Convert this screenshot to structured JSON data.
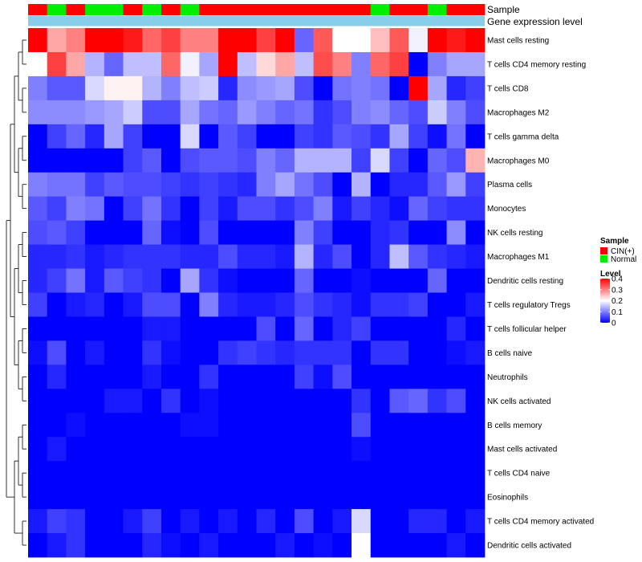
{
  "chart_data": {
    "type": "heatmap",
    "annotation_tracks": [
      {
        "name": "Sample"
      },
      {
        "name": "Gene expression level"
      }
    ],
    "samples": [
      "CIN(+)",
      "Normal",
      "CIN(+)",
      "Normal",
      "Normal",
      "CIN(+)",
      "Normal",
      "CIN(+)",
      "Normal",
      "CIN(+)",
      "CIN(+)",
      "CIN(+)",
      "CIN(+)",
      "CIN(+)",
      "CIN(+)",
      "CIN(+)",
      "CIN(+)",
      "CIN(+)",
      "Normal",
      "CIN(+)",
      "CIN(+)",
      "Normal",
      "CIN(+)",
      "CIN(+)"
    ],
    "rows": [
      "Mast cells resting",
      "T cells CD4 memory resting",
      "T cells CD8",
      "Macrophages M2",
      "T cells gamma delta",
      "Macrophages M0",
      "Plasma cells",
      "Monocytes",
      "NK cells resting",
      "Macrophages M1",
      "Dendritic cells resting",
      "T cells regulatory  Tregs",
      "T cells follicular helper",
      "B cells naive",
      "Neutrophils",
      "NK cells activated",
      "B cells memory",
      "Mast cells activated",
      "T cells CD4 naive",
      "Eosinophils",
      "T cells CD4 memory activated",
      "Dendritic cells activated"
    ],
    "values": [
      [
        0.4,
        0.27,
        0.3,
        0.4,
        0.4,
        0.38,
        0.32,
        0.35,
        0.3,
        0.3,
        0.4,
        0.4,
        0.35,
        0.4,
        0.08,
        0.33,
        0.2,
        0.2,
        0.25,
        0.33,
        0.19,
        0.4,
        0.38,
        0.4
      ],
      [
        0.2,
        0.35,
        0.27,
        0.14,
        0.08,
        0.15,
        0.15,
        0.32,
        0.19,
        0.13,
        0.4,
        0.15,
        0.23,
        0.27,
        0.15,
        0.34,
        0.3,
        0.1,
        0.32,
        0.35,
        0.0,
        0.1,
        0.13,
        0.13
      ],
      [
        0.1,
        0.07,
        0.07,
        0.17,
        0.21,
        0.21,
        0.14,
        0.1,
        0.15,
        0.16,
        0.03,
        0.11,
        0.12,
        0.13,
        0.06,
        0.0,
        0.09,
        0.1,
        0.09,
        0.0,
        0.4,
        0.13,
        0.03,
        0.05
      ],
      [
        0.11,
        0.11,
        0.11,
        0.12,
        0.13,
        0.16,
        0.06,
        0.06,
        0.13,
        0.09,
        0.08,
        0.12,
        0.1,
        0.08,
        0.09,
        0.04,
        0.06,
        0.1,
        0.11,
        0.08,
        0.06,
        0.16,
        0.1,
        0.06
      ],
      [
        0.0,
        0.05,
        0.08,
        0.03,
        0.13,
        0.05,
        0.0,
        0.0,
        0.17,
        0.0,
        0.07,
        0.05,
        0.0,
        0.0,
        0.05,
        0.04,
        0.07,
        0.06,
        0.04,
        0.13,
        0.05,
        0.01,
        0.09,
        0.0
      ],
      [
        0.0,
        0.0,
        0.0,
        0.0,
        0.0,
        0.05,
        0.07,
        0.0,
        0.06,
        0.07,
        0.07,
        0.06,
        0.1,
        0.08,
        0.14,
        0.14,
        0.14,
        0.05,
        0.17,
        0.05,
        0.0,
        0.08,
        0.06,
        0.26
      ],
      [
        0.1,
        0.09,
        0.09,
        0.05,
        0.07,
        0.06,
        0.06,
        0.05,
        0.04,
        0.05,
        0.04,
        0.03,
        0.1,
        0.13,
        0.09,
        0.06,
        0.0,
        0.14,
        0.0,
        0.03,
        0.03,
        0.07,
        0.12,
        0.05
      ],
      [
        0.07,
        0.05,
        0.1,
        0.09,
        0.0,
        0.05,
        0.09,
        0.04,
        0.0,
        0.05,
        0.02,
        0.06,
        0.06,
        0.04,
        0.06,
        0.1,
        0.02,
        0.05,
        0.03,
        0.01,
        0.08,
        0.05,
        0.04,
        0.04
      ],
      [
        0.06,
        0.07,
        0.05,
        0.0,
        0.0,
        0.0,
        0.08,
        0.01,
        0.0,
        0.06,
        0.0,
        0.0,
        0.0,
        0.0,
        0.1,
        0.05,
        0.0,
        0.0,
        0.03,
        0.04,
        0.0,
        0.0,
        0.11,
        0.0
      ],
      [
        0.03,
        0.03,
        0.04,
        0.02,
        0.03,
        0.04,
        0.04,
        0.04,
        0.03,
        0.03,
        0.06,
        0.03,
        0.03,
        0.02,
        0.14,
        0.03,
        0.06,
        0.0,
        0.03,
        0.15,
        0.07,
        0.04,
        0.03,
        0.02
      ],
      [
        0.03,
        0.05,
        0.09,
        0.02,
        0.07,
        0.05,
        0.04,
        0.0,
        0.13,
        0.04,
        0.01,
        0.0,
        0.0,
        0.0,
        0.08,
        0.0,
        0.0,
        0.01,
        0.0,
        0.0,
        0.0,
        0.08,
        0.0,
        0.0
      ],
      [
        0.05,
        0.0,
        0.02,
        0.03,
        0.0,
        0.02,
        0.06,
        0.06,
        0.0,
        0.1,
        0.03,
        0.02,
        0.02,
        0.03,
        0.06,
        0.04,
        0.03,
        0.01,
        0.04,
        0.04,
        0.05,
        0.0,
        0.0,
        0.02
      ],
      [
        0.0,
        0.0,
        0.0,
        0.0,
        0.0,
        0.0,
        0.02,
        0.02,
        0.0,
        0.0,
        0.0,
        0.0,
        0.06,
        0.0,
        0.08,
        0.0,
        0.03,
        0.05,
        0.0,
        0.0,
        0.0,
        0.0,
        0.03,
        0.0
      ],
      [
        0.01,
        0.06,
        0.0,
        0.02,
        0.0,
        0.0,
        0.04,
        0.01,
        0.0,
        0.0,
        0.04,
        0.05,
        0.04,
        0.03,
        0.04,
        0.04,
        0.04,
        0.0,
        0.04,
        0.04,
        0.0,
        0.0,
        0.01,
        0.02
      ],
      [
        0.0,
        0.03,
        0.0,
        0.0,
        0.0,
        0.0,
        0.02,
        0.0,
        0.0,
        0.04,
        0.0,
        0.0,
        0.0,
        0.0,
        0.05,
        0.01,
        0.06,
        0.0,
        0.0,
        0.0,
        0.0,
        0.0,
        0.0,
        0.0
      ],
      [
        0.0,
        0.0,
        0.0,
        0.0,
        0.02,
        0.02,
        0.0,
        0.04,
        0.0,
        0.01,
        0.0,
        0.0,
        0.0,
        0.0,
        0.0,
        0.0,
        0.0,
        0.04,
        0.0,
        0.07,
        0.08,
        0.04,
        0.06,
        0.0
      ],
      [
        0.0,
        0.0,
        0.01,
        0.0,
        0.0,
        0.0,
        0.0,
        0.0,
        0.01,
        0.01,
        0.0,
        0.0,
        0.0,
        0.0,
        0.0,
        0.0,
        0.0,
        0.06,
        0.0,
        0.0,
        0.0,
        0.0,
        0.0,
        0.0
      ],
      [
        0.0,
        0.02,
        0.0,
        0.0,
        0.0,
        0.0,
        0.0,
        0.0,
        0.0,
        0.0,
        0.0,
        0.0,
        0.0,
        0.0,
        0.0,
        0.0,
        0.0,
        0.01,
        0.0,
        0.0,
        0.0,
        0.0,
        0.0,
        0.0
      ],
      [
        0.0,
        0.0,
        0.0,
        0.0,
        0.0,
        0.0,
        0.0,
        0.0,
        0.0,
        0.0,
        0.0,
        0.0,
        0.0,
        0.0,
        0.0,
        0.0,
        0.0,
        0.0,
        0.0,
        0.0,
        0.0,
        0.0,
        0.0,
        0.0
      ],
      [
        0.0,
        0.0,
        0.0,
        0.0,
        0.0,
        0.0,
        0.0,
        0.0,
        0.0,
        0.0,
        0.0,
        0.0,
        0.0,
        0.0,
        0.0,
        0.0,
        0.0,
        0.0,
        0.0,
        0.0,
        0.0,
        0.0,
        0.0,
        0.0
      ],
      [
        0.02,
        0.05,
        0.04,
        0.0,
        0.0,
        0.02,
        0.05,
        0.0,
        0.02,
        0.0,
        0.02,
        0.0,
        0.03,
        0.0,
        0.06,
        0.0,
        0.02,
        0.17,
        0.0,
        0.0,
        0.03,
        0.03,
        0.0,
        0.02
      ],
      [
        0.0,
        0.02,
        0.04,
        0.0,
        0.0,
        0.0,
        0.03,
        0.01,
        0.0,
        0.02,
        0.0,
        0.0,
        0.0,
        0.02,
        0.0,
        0.01,
        0.0,
        0.2,
        0.0,
        0.0,
        0.0,
        0.0,
        0.02,
        0.0
      ]
    ],
    "color_scale": {
      "min": 0,
      "mid": 0.2,
      "max": 0.4,
      "low": "#0000ff",
      "midcolor": "#ffffff",
      "high": "#ff0000"
    },
    "legend": {
      "sample_title": "Sample",
      "sample_entries": [
        {
          "label": "CIN(+)",
          "color": "#ff0000"
        },
        {
          "label": "Normal",
          "color": "#00ee00"
        }
      ],
      "level_title": "Level",
      "level_ticks": [
        0.4,
        0.3,
        0.2,
        0.1,
        0
      ],
      "level_tick_labels": [
        "0.4",
        "0.3",
        "0.2",
        "0.1",
        "0"
      ]
    },
    "expression_track_color": "#87ceeb",
    "row_dendrogram": true
  }
}
